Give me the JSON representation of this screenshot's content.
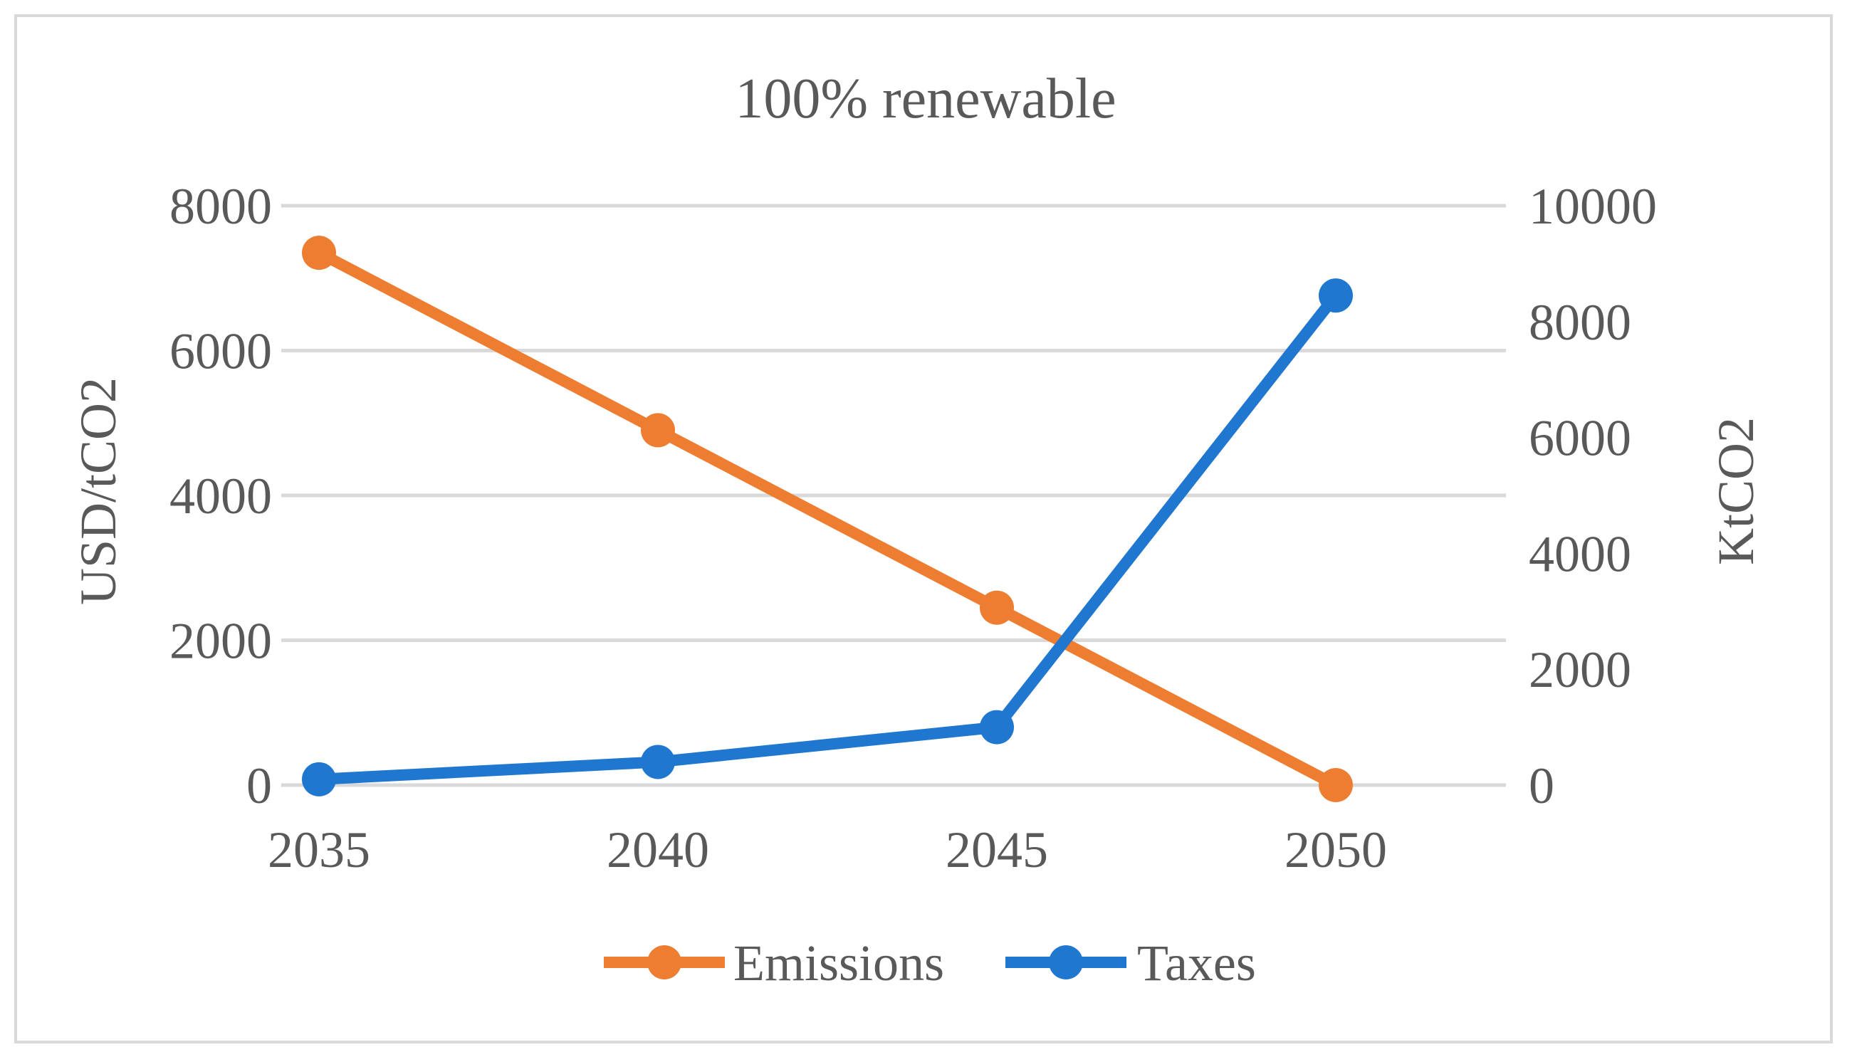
{
  "chart_data": {
    "type": "line",
    "title": "100% renewable",
    "categories": [
      "2035",
      "2040",
      "2045",
      "2050"
    ],
    "series": [
      {
        "name": "Emissions",
        "axis": "left",
        "color": "#ed7d31",
        "values": [
          7350,
          4900,
          2450,
          0
        ]
      },
      {
        "name": "Taxes",
        "axis": "right",
        "color": "#1f77d0",
        "values": [
          100,
          400,
          1000,
          8450
        ]
      }
    ],
    "y_left": {
      "label": "USD/tCO2",
      "ylim": [
        0,
        8000
      ],
      "ticks": [
        0,
        2000,
        4000,
        6000,
        8000
      ]
    },
    "y_right": {
      "label": "KtCO2",
      "ylim": [
        0,
        10000
      ],
      "ticks": [
        0,
        2000,
        4000,
        6000,
        8000,
        10000
      ]
    },
    "grid": true,
    "legend_position": "bottom"
  }
}
